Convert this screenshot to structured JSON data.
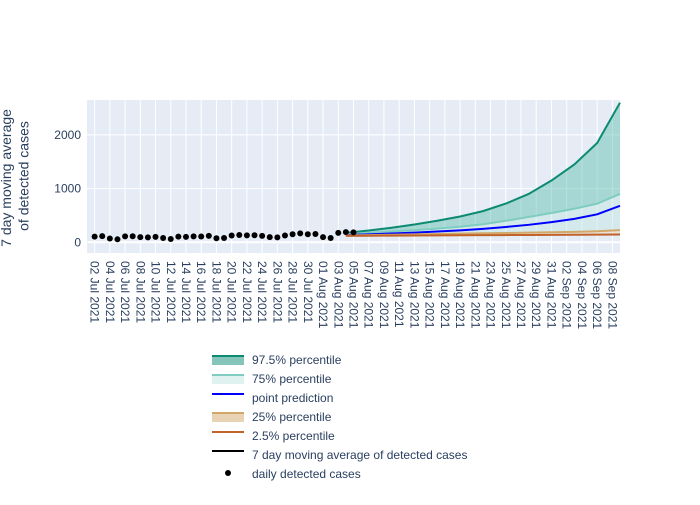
{
  "chart_data": {
    "type": "area",
    "title": "",
    "xlabel": "",
    "ylabel_line1": "7 day moving average",
    "ylabel_line2": "of detected cases",
    "ylim": [
      -200,
      2650
    ],
    "yticks": [
      0,
      1000,
      2000
    ],
    "ytick_labels": [
      "0",
      "1000",
      "2000"
    ],
    "x_start": "2021-07-01",
    "x_end": "2021-09-09",
    "xtick_labels": [
      "02 Jul 2021",
      "04 Jul 2021",
      "06 Jul 2021",
      "08 Jul 2021",
      "10 Jul 2021",
      "12 Jul 2021",
      "14 Jul 2021",
      "16 Jul 2021",
      "18 Jul 2021",
      "20 Jul 2021",
      "22 Jul 2021",
      "24 Jul 2021",
      "26 Jul 2021",
      "28 Jul 2021",
      "30 Jul 2021",
      "01 Aug 2021",
      "03 Aug 2021",
      "05 Aug 2021",
      "07 Aug 2021",
      "09 Aug 2021",
      "11 Aug 2021",
      "13 Aug 2021",
      "15 Aug 2021",
      "17 Aug 2021",
      "19 Aug 2021",
      "21 Aug 2021",
      "23 Aug 2021",
      "25 Aug 2021",
      "27 Aug 2021",
      "29 Aug 2021",
      "31 Aug 2021",
      "02 Sep 2021",
      "04 Sep 2021",
      "06 Sep 2021",
      "08 Sep 2021"
    ],
    "forecast_dates": [
      "2021-08-04",
      "2021-08-07",
      "2021-08-10",
      "2021-08-13",
      "2021-08-16",
      "2021-08-19",
      "2021-08-22",
      "2021-08-25",
      "2021-08-28",
      "2021-08-31",
      "2021-09-03",
      "2021-09-06",
      "2021-09-09"
    ],
    "series": [
      {
        "name": "97.5% percentile",
        "color": "#0c8a72",
        "fill": "#5bbfae",
        "values": [
          175,
          220,
          270,
          330,
          400,
          480,
          580,
          720,
          900,
          1150,
          1450,
          1850,
          2600
        ]
      },
      {
        "name": "75% percentile",
        "color": "#7fcdc0",
        "fill": "#bfe6df",
        "values": [
          150,
          175,
          200,
          225,
          255,
          290,
          335,
          400,
          470,
          545,
          625,
          720,
          900
        ]
      },
      {
        "name": "point prediction",
        "color": "#0000ff",
        "values": [
          135,
          148,
          163,
          180,
          200,
          222,
          250,
          285,
          325,
          375,
          435,
          520,
          680
        ]
      },
      {
        "name": "25% percentile",
        "color": "#d2a86a",
        "fill": "#ead8b8",
        "values": [
          128,
          133,
          140,
          147,
          154,
          160,
          167,
          173,
          180,
          186,
          193,
          205,
          225
        ]
      },
      {
        "name": "2.5% percentile",
        "color": "#c0622a",
        "values": [
          120,
          122,
          124,
          126,
          128,
          130,
          132,
          134,
          136,
          138,
          140,
          143,
          145
        ]
      },
      {
        "name": "7 day moving average of detected cases",
        "color": "#000000",
        "values": []
      },
      {
        "name": "daily detected cases",
        "color": "#000000",
        "dates": [
          "2021-07-02",
          "2021-07-03",
          "2021-07-04",
          "2021-07-05",
          "2021-07-06",
          "2021-07-07",
          "2021-07-08",
          "2021-07-09",
          "2021-07-10",
          "2021-07-11",
          "2021-07-12",
          "2021-07-13",
          "2021-07-14",
          "2021-07-15",
          "2021-07-16",
          "2021-07-17",
          "2021-07-18",
          "2021-07-19",
          "2021-07-20",
          "2021-07-21",
          "2021-07-22",
          "2021-07-23",
          "2021-07-24",
          "2021-07-25",
          "2021-07-26",
          "2021-07-27",
          "2021-07-28",
          "2021-07-29",
          "2021-07-30",
          "2021-07-31",
          "2021-08-01",
          "2021-08-02",
          "2021-08-03",
          "2021-08-04",
          "2021-08-05"
        ],
        "values": [
          105,
          115,
          70,
          55,
          110,
          112,
          95,
          90,
          100,
          80,
          60,
          105,
          100,
          110,
          108,
          120,
          75,
          80,
          125,
          135,
          128,
          130,
          120,
          95,
          90,
          125,
          150,
          165,
          150,
          155,
          95,
          80,
          175,
          190,
          185
        ]
      }
    ]
  }
}
